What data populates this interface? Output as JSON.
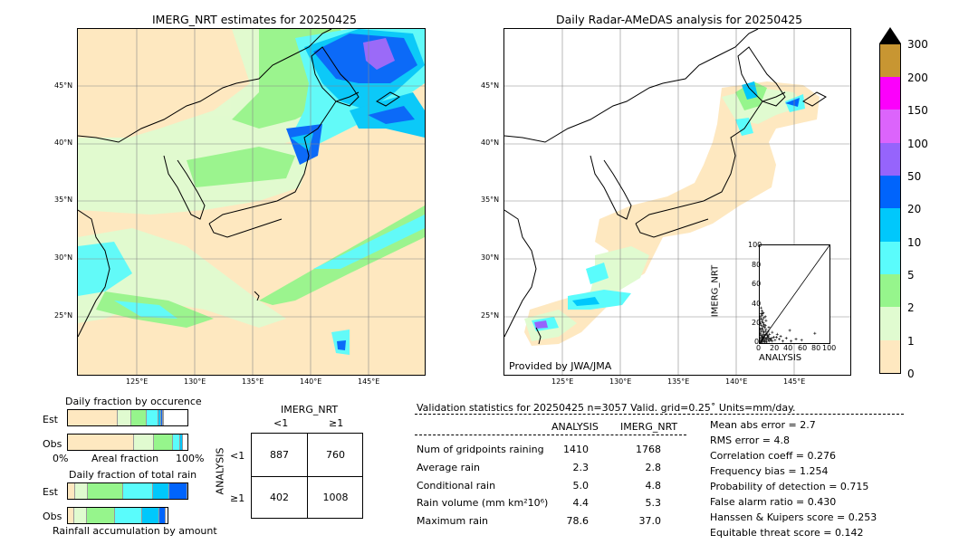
{
  "left_map": {
    "title": "IMERG_NRT estimates for 20250425",
    "lat_labels": [
      "45°N",
      "40°N",
      "35°N",
      "30°N",
      "25°N"
    ],
    "lon_labels": [
      "125°E",
      "130°E",
      "135°E",
      "140°E",
      "145°E"
    ]
  },
  "right_map": {
    "title": "Daily Radar-AMeDAS analysis for 20250425",
    "lat_labels": [
      "45°N",
      "40°N",
      "35°N",
      "30°N",
      "25°N"
    ],
    "lon_labels": [
      "125°E",
      "130°E",
      "135°E",
      "140°E",
      "145°E"
    ],
    "credit": "Provided by JWA/JMA"
  },
  "colorbar": {
    "labels": [
      "0",
      "1",
      "2",
      "5",
      "10",
      "20",
      "50",
      "100",
      "150",
      "200",
      "300"
    ],
    "colors": [
      "#fee8c0",
      "#e0fbd0",
      "#96f58c",
      "#5afcfc",
      "#00c8fc",
      "#0064fc",
      "#9664fc",
      "#dc64fc",
      "#fc00fc",
      "#c89632"
    ]
  },
  "chart_data": {
    "type": "scatter",
    "xlabel": "ANALYSIS",
    "ylabel": "IMERG_NRT",
    "xlim": [
      0,
      100
    ],
    "ylim": [
      0,
      100
    ],
    "x_ticks": [
      "0",
      "20",
      "40",
      "60",
      "80",
      "100"
    ],
    "y_ticks": [
      "0",
      "20",
      "40",
      "60",
      "80",
      "100"
    ],
    "points": [
      [
        1,
        1
      ],
      [
        2,
        3
      ],
      [
        3,
        1
      ],
      [
        1,
        5
      ],
      [
        4,
        2
      ],
      [
        2,
        8
      ],
      [
        5,
        4
      ],
      [
        3,
        6
      ],
      [
        6,
        2
      ],
      [
        1,
        10
      ],
      [
        2,
        12
      ],
      [
        4,
        7
      ],
      [
        7,
        3
      ],
      [
        8,
        5
      ],
      [
        3,
        15
      ],
      [
        5,
        9
      ],
      [
        2,
        18
      ],
      [
        6,
        11
      ],
      [
        9,
        2
      ],
      [
        4,
        14
      ],
      [
        1,
        20
      ],
      [
        3,
        22
      ],
      [
        5,
        17
      ],
      [
        7,
        8
      ],
      [
        10,
        4
      ],
      [
        2,
        25
      ],
      [
        6,
        19
      ],
      [
        8,
        12
      ],
      [
        11,
        6
      ],
      [
        3,
        28
      ],
      [
        4,
        24
      ],
      [
        9,
        9
      ],
      [
        12,
        3
      ],
      [
        5,
        21
      ],
      [
        2,
        30
      ],
      [
        7,
        16
      ],
      [
        13,
        5
      ],
      [
        6,
        26
      ],
      [
        1,
        14
      ],
      [
        10,
        10
      ],
      [
        14,
        2
      ],
      [
        4,
        30
      ],
      [
        8,
        18
      ],
      [
        3,
        33
      ],
      [
        15,
        4
      ],
      [
        2,
        36
      ],
      [
        11,
        8
      ],
      [
        5,
        12
      ],
      [
        16,
        3
      ],
      [
        12,
        7
      ],
      [
        17,
        5
      ],
      [
        9,
        14
      ],
      [
        18,
        2
      ],
      [
        20,
        6
      ],
      [
        22,
        3
      ],
      [
        25,
        9
      ],
      [
        28,
        4
      ],
      [
        30,
        7
      ],
      [
        33,
        2
      ],
      [
        38,
        5
      ],
      [
        45,
        2
      ],
      [
        52,
        4
      ],
      [
        60,
        3
      ],
      [
        10,
        1
      ],
      [
        1,
        2
      ],
      [
        2,
        1
      ],
      [
        3,
        3
      ],
      [
        4,
        4
      ],
      [
        5,
        5
      ],
      [
        6,
        6
      ],
      [
        0,
        15
      ],
      [
        0,
        24
      ],
      [
        1,
        27
      ],
      [
        7,
        1
      ],
      [
        0,
        8
      ],
      [
        12,
        12
      ],
      [
        14,
        9
      ],
      [
        8,
        27
      ],
      [
        43,
        13
      ],
      [
        79,
        10
      ],
      [
        5,
        31
      ],
      [
        9,
        23
      ],
      [
        13,
        16
      ],
      [
        18,
        11
      ],
      [
        24,
        6
      ]
    ]
  },
  "fraction_occurrence": {
    "title": "Daily fraction by occurence",
    "rows": [
      "Est",
      "Obs"
    ],
    "axis_left": "0%",
    "axis_mid": "Areal fraction",
    "axis_right": "100%",
    "est": [
      0.42,
      0.11,
      0.13,
      0.1,
      0.02,
      0.015,
      0.005
    ],
    "obs": [
      0.55,
      0.17,
      0.16,
      0.06,
      0.02,
      0.0,
      0.0
    ]
  },
  "fraction_total": {
    "title": "Daily fraction of total rain",
    "rows": [
      "Est",
      "Obs"
    ],
    "caption": "Rainfall accumulation by amount",
    "est": [
      0.06,
      0.11,
      0.29,
      0.25,
      0.14,
      0.15
    ],
    "obs": [
      0.06,
      0.13,
      0.28,
      0.28,
      0.17,
      0.06
    ]
  },
  "contingency": {
    "top_label": "IMERG_NRT",
    "col_lt": "<1",
    "col_ge": "≥1",
    "side_label": "ANALYSIS",
    "row_lt": "<1",
    "row_ge": "≥1",
    "a": "887",
    "b": "760",
    "c": "402",
    "d": "1008"
  },
  "validation": {
    "header": "Validation statistics for 20250425  n=3057 Valid. grid=0.25˚ Units=mm/day.",
    "col_analysis": "ANALYSIS",
    "col_imerg": "IMERG_NRT",
    "rows": [
      {
        "label": "Num of gridpoints raining",
        "analysis": "1410",
        "imerg": "1768"
      },
      {
        "label": "Average rain",
        "analysis": "2.3",
        "imerg": "2.8"
      },
      {
        "label": "Conditional rain",
        "analysis": "5.0",
        "imerg": "4.8"
      },
      {
        "label": "Rain volume (mm km²10⁶)",
        "analysis": "4.4",
        "imerg": "5.3"
      },
      {
        "label": "Maximum rain",
        "analysis": "78.6",
        "imerg": "37.0"
      }
    ],
    "scores": [
      "Mean abs error =    2.7",
      "RMS error =    4.8",
      "Correlation coeff =  0.276",
      "Frequency bias =  1.254",
      "Probability of detection =  0.715",
      "False alarm ratio =  0.430",
      "Hanssen & Kuipers score =  0.253",
      "Equitable threat score =  0.142"
    ]
  }
}
